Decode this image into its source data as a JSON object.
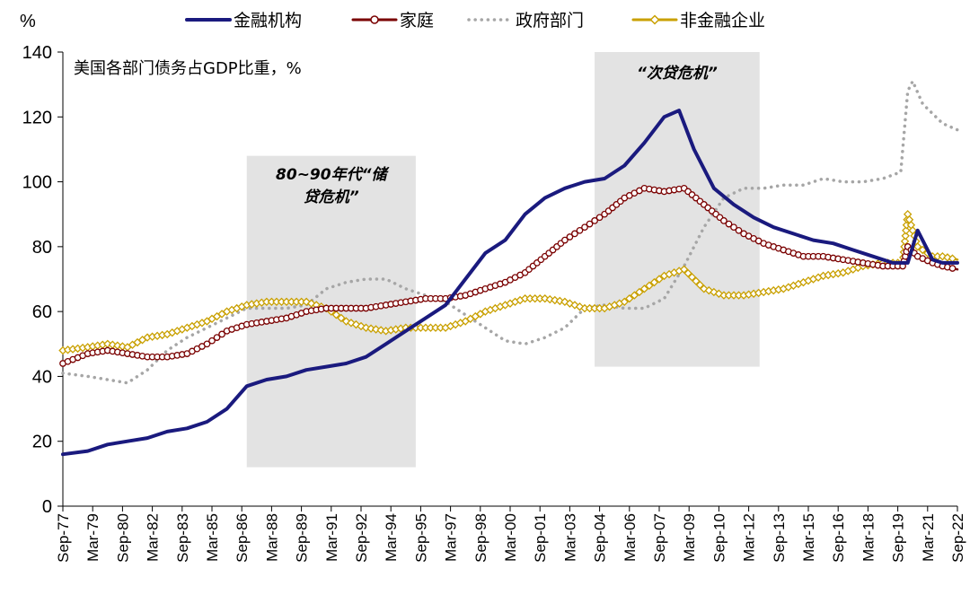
{
  "chart_data": {
    "type": "line",
    "title": "美国各部门债务占GDP比重，%",
    "ylabel": "%",
    "ylim": [
      0,
      140
    ],
    "yticks": [
      0,
      20,
      40,
      60,
      80,
      100,
      120,
      140
    ],
    "grid": false,
    "legend_position": "top",
    "x_tick_labels": [
      "Sep-77",
      "Mar-79",
      "Sep-80",
      "Mar-82",
      "Sep-83",
      "Mar-85",
      "Sep-86",
      "Mar-88",
      "Sep-89",
      "Mar-91",
      "Sep-92",
      "Mar-94",
      "Sep-95",
      "Mar-97",
      "Sep-98",
      "Mar-00",
      "Sep-01",
      "Mar-03",
      "Sep-04",
      "Mar-06",
      "Sep-07",
      "Mar-09",
      "Sep-10",
      "Mar-12",
      "Sep-13",
      "Mar-15",
      "Sep-16",
      "Mar-18",
      "Sep-19",
      "Mar-21",
      "Sep-22"
    ],
    "shaded_regions": [
      {
        "label": "80~90年代“储贷危机”",
        "label_line1": "80~90年代“储",
        "label_line2": "贷危机”",
        "x_start": 1987.0,
        "x_end": 1995.5,
        "y_range": [
          12,
          108
        ]
      },
      {
        "label": "“次贷危机”",
        "x_start": 2004.5,
        "x_end": 2012.8,
        "y_range": [
          43,
          140
        ]
      }
    ],
    "series": [
      {
        "name": "金融机构",
        "color": "#1a1a7e",
        "style": "solid",
        "marker": "none",
        "x": [
          1977.75,
          1979,
          1980,
          1981,
          1982,
          1983,
          1984,
          1985,
          1986,
          1987,
          1988,
          1989,
          1990,
          1991,
          1992,
          1993,
          1994,
          1995,
          1996,
          1997,
          1998,
          1999,
          2000,
          2001,
          2002,
          2003,
          2004,
          2005,
          2006,
          2007,
          2008,
          2008.75,
          2009.5,
          2010.5,
          2011.5,
          2012.5,
          2013.5,
          2014.5,
          2015.5,
          2016.5,
          2017.5,
          2018.5,
          2019.5,
          2020.25,
          2020.75,
          2021.5,
          2022,
          2022.75
        ],
        "y": [
          16,
          17,
          19,
          20,
          21,
          23,
          24,
          26,
          30,
          37,
          39,
          40,
          42,
          43,
          44,
          46,
          50,
          54,
          58,
          62,
          70,
          78,
          82,
          90,
          95,
          98,
          100,
          101,
          105,
          112,
          120,
          122,
          110,
          98,
          93,
          89,
          86,
          84,
          82,
          81,
          79,
          77,
          75,
          75,
          85,
          76,
          75,
          75
        ]
      },
      {
        "name": "家庭",
        "color": "#7a0000",
        "style": "solid",
        "marker": "open-circle",
        "x": [
          1977.75,
          1979,
          1980,
          1981,
          1982,
          1983,
          1984,
          1985,
          1986,
          1987,
          1988,
          1989,
          1990,
          1991,
          1992,
          1993,
          1994,
          1995,
          1996,
          1997,
          1998,
          1999,
          2000,
          2001,
          2002,
          2003,
          2004,
          2005,
          2006,
          2007,
          2008,
          2009,
          2010,
          2011,
          2012,
          2013,
          2014,
          2015,
          2016,
          2017,
          2018,
          2019,
          2020,
          2020.25,
          2020.75,
          2021.5,
          2022,
          2022.75
        ],
        "y": [
          44,
          47,
          48,
          47,
          46,
          46,
          47,
          50,
          54,
          56,
          57,
          58,
          60,
          61,
          61,
          61,
          62,
          63,
          64,
          64,
          65,
          67,
          69,
          72,
          77,
          82,
          86,
          90,
          95,
          98,
          97,
          98,
          93,
          88,
          84,
          81,
          79,
          77,
          77,
          76,
          75,
          74,
          74,
          80,
          77,
          75,
          74,
          73
        ]
      },
      {
        "name": "政府部门",
        "color": "#a6a6a6",
        "style": "dotted",
        "marker": "none",
        "x": [
          1977.75,
          1979,
          1980,
          1981,
          1982,
          1983,
          1984,
          1985,
          1986,
          1987,
          1988,
          1989,
          1990,
          1991,
          1992,
          1993,
          1994,
          1995,
          1996,
          1997,
          1998,
          1999,
          2000,
          2001,
          2002,
          2003,
          2004,
          2005,
          2006,
          2007,
          2008,
          2009,
          2010,
          2011,
          2012,
          2013,
          2014,
          2015,
          2016,
          2017,
          2018,
          2019,
          2019.9,
          2020.25,
          2020.5,
          2021,
          2022,
          2022.75
        ],
        "y": [
          41,
          40,
          39,
          38,
          42,
          48,
          52,
          55,
          58,
          61,
          61,
          61,
          62,
          67,
          69,
          70,
          70,
          67,
          65,
          63,
          59,
          55,
          51,
          50,
          52,
          55,
          61,
          62,
          61,
          61,
          64,
          74,
          86,
          95,
          98,
          98,
          99,
          99,
          101,
          100,
          100,
          101,
          103,
          128,
          131,
          124,
          118,
          116
        ]
      },
      {
        "name": "非金融企业",
        "color": "#c9a000",
        "style": "solid",
        "marker": "open-diamond",
        "x": [
          1977.75,
          1979,
          1980,
          1981,
          1982,
          1983,
          1984,
          1985,
          1986,
          1987,
          1988,
          1989,
          1990,
          1991,
          1992,
          1993,
          1994,
          1995,
          1996,
          1997,
          1998,
          1999,
          2000,
          2001,
          2002,
          2003,
          2004,
          2005,
          2006,
          2007,
          2008,
          2009,
          2010,
          2011,
          2012,
          2013,
          2014,
          2015,
          2016,
          2017,
          2018,
          2019,
          2020,
          2020.25,
          2020.75,
          2021.5,
          2022,
          2022.75
        ],
        "y": [
          48,
          49,
          50,
          49,
          52,
          53,
          55,
          57,
          60,
          62,
          63,
          63,
          63,
          61,
          57,
          55,
          54,
          55,
          55,
          55,
          57,
          60,
          62,
          64,
          64,
          63,
          61,
          61,
          63,
          67,
          71,
          73,
          67,
          65,
          65,
          66,
          67,
          69,
          71,
          72,
          74,
          75,
          75,
          90,
          80,
          77,
          77,
          76
        ]
      }
    ]
  }
}
